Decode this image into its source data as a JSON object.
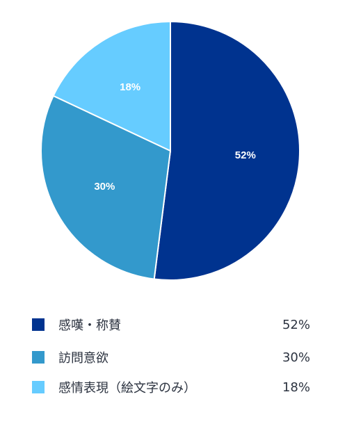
{
  "chart_data": {
    "type": "pie",
    "categories": [
      "感嘆・称賛",
      "訪問意欲",
      "感情表現（絵文字のみ）"
    ],
    "values": [
      52,
      30,
      18
    ],
    "value_labels": [
      "52%",
      "30%",
      "18%"
    ],
    "colors": [
      "#00338f",
      "#3399cc",
      "#66ccff"
    ],
    "legend_position": "bottom",
    "start_angle": "12 o'clock",
    "direction": "clockwise"
  }
}
